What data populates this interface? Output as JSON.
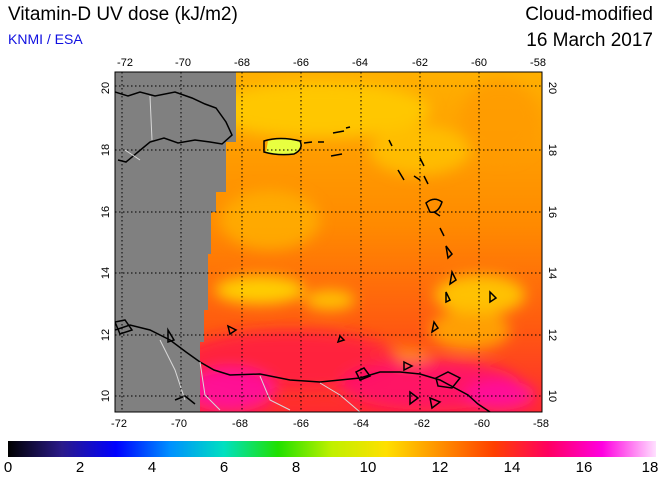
{
  "header": {
    "title": "Vitamin-D UV dose (kJ/m2)",
    "credit": "KNMI / ESA",
    "mode": "Cloud-modified",
    "date": "16 March 2017"
  },
  "map": {
    "lon_ticks": [
      "-72",
      "-70",
      "-68",
      "-66",
      "-64",
      "-62",
      "-60",
      "-58"
    ],
    "lat_ticks": [
      "10",
      "12",
      "14",
      "16",
      "18",
      "20"
    ],
    "no_data_color": "#808080",
    "coastline_color": "#000000",
    "border_color": "#d8d8d8",
    "graticule": "dotted"
  },
  "colorbar": {
    "labels": [
      "0",
      "2",
      "4",
      "6",
      "8",
      "10",
      "12",
      "14",
      "16",
      "18"
    ],
    "min": 0,
    "max": 18,
    "stops": [
      "#000000",
      "#2a1a8a",
      "#0000ff",
      "#0090ff",
      "#00e0c0",
      "#20e000",
      "#c0f000",
      "#ffe000",
      "#ff9000",
      "#ff4000",
      "#ff0060",
      "#ff00e0",
      "#ffe0ff"
    ]
  }
}
